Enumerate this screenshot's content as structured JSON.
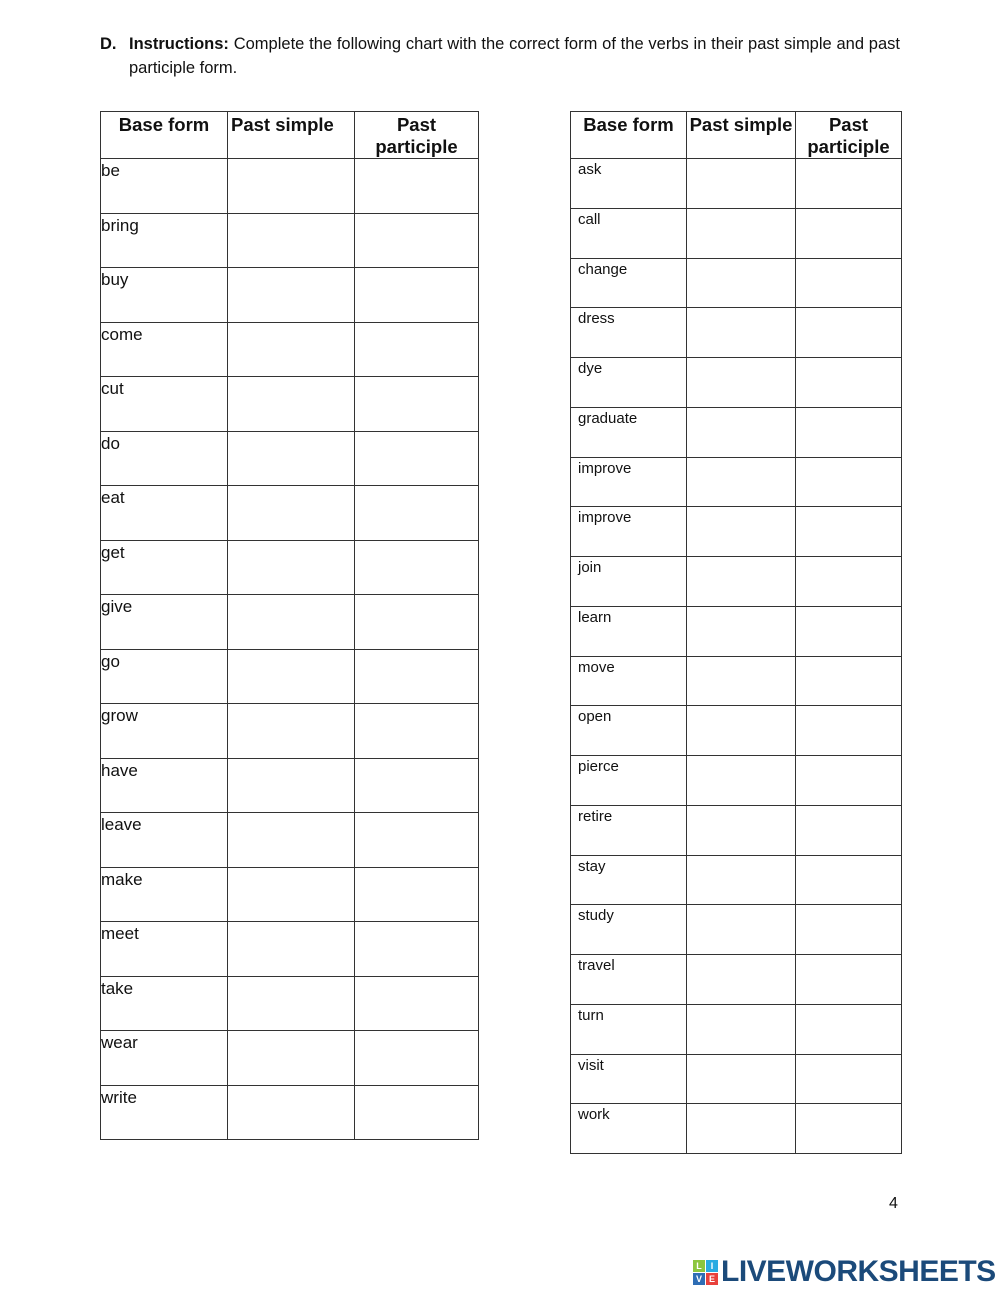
{
  "instructions": {
    "letter": "D.",
    "label": "Instructions:",
    "text": " Complete the following chart with the correct form of the verbs in their past simple and past participle form."
  },
  "table_left": {
    "headers": [
      "Base form",
      "Past simple",
      "Past participle"
    ],
    "verbs": [
      "be",
      "bring",
      "buy",
      "come",
      "cut",
      "do",
      "eat",
      "get",
      "give",
      "go",
      "grow",
      "have",
      "leave",
      "make",
      "meet",
      "take",
      "wear",
      "write"
    ]
  },
  "table_right": {
    "headers": [
      "Base form",
      "Past simple",
      "Past participle"
    ],
    "verbs": [
      "ask",
      "call",
      "change",
      "dress",
      "dye",
      "graduate",
      "improve",
      "improve",
      "join",
      "learn",
      "move",
      "open",
      "pierce",
      "retire",
      "stay",
      "study",
      "travel",
      "turn",
      "visit",
      "work"
    ]
  },
  "page_number": "4",
  "logo": {
    "text": "LIVEWORKSHEETS",
    "letters": [
      "L",
      "I",
      "V",
      "E"
    ],
    "colors": [
      "#8cc63f",
      "#29abe2",
      "#2e6db4",
      "#e8413c"
    ],
    "brand_color": "#1b4a7a"
  }
}
